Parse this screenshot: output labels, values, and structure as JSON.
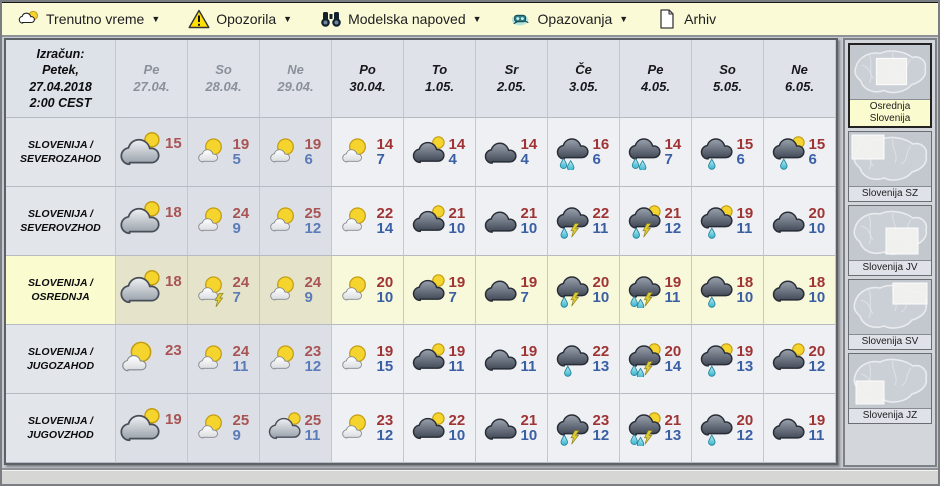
{
  "menu": {
    "items": [
      {
        "icon": "current-weather-icon",
        "label": "Trenutno vreme",
        "arrow": "▼"
      },
      {
        "icon": "warning-icon",
        "label": "Opozorila",
        "arrow": "▼"
      },
      {
        "icon": "binoculars-icon",
        "label": "Modelska napoved",
        "arrow": "▼"
      },
      {
        "icon": "satellite-icon",
        "label": "Opazovanja",
        "arrow": "▼"
      },
      {
        "icon": "document-icon",
        "label": "Arhiv",
        "arrow": null
      }
    ]
  },
  "table": {
    "calc": {
      "lines": [
        "Izračun:",
        "Petek,",
        "27.04.2018",
        "2:00 CEST"
      ]
    },
    "days": [
      {
        "label": "Pe",
        "date": "27.04.",
        "past": true
      },
      {
        "label": "So",
        "date": "28.04.",
        "past": true
      },
      {
        "label": "Ne",
        "date": "29.04.",
        "past": true
      },
      {
        "label": "Po",
        "date": "30.04.",
        "past": false
      },
      {
        "label": "To",
        "date": "1.05.",
        "past": false
      },
      {
        "label": "Sr",
        "date": "2.05.",
        "past": false
      },
      {
        "label": "Če",
        "date": "3.05.",
        "past": false
      },
      {
        "label": "Pe",
        "date": "4.05.",
        "past": false
      },
      {
        "label": "So",
        "date": "5.05.",
        "past": false
      },
      {
        "label": "Ne",
        "date": "6.05.",
        "past": false
      }
    ],
    "rows": [
      {
        "region_prefix": "SLOVENIJA /",
        "region_name": "SEVEROZAHOD",
        "selected": false,
        "cells": [
          {
            "icon": "cloud-sun",
            "hi": 15,
            "lo": null
          },
          {
            "icon": "sun-cloud",
            "hi": 19,
            "lo": 5
          },
          {
            "icon": "sun-cloud",
            "hi": 19,
            "lo": 6
          },
          {
            "icon": "sun-cloud",
            "hi": 14,
            "lo": 7
          },
          {
            "icon": "cloud-dark-sun",
            "hi": 14,
            "lo": 4
          },
          {
            "icon": "cloud-dark",
            "hi": 14,
            "lo": 4
          },
          {
            "icon": "rain-2",
            "hi": 16,
            "lo": 6
          },
          {
            "icon": "rain-2",
            "hi": 14,
            "lo": 7
          },
          {
            "icon": "rain-1",
            "hi": 15,
            "lo": 6
          },
          {
            "icon": "rain-1-sun",
            "hi": 15,
            "lo": 6
          }
        ]
      },
      {
        "region_prefix": "SLOVENIJA /",
        "region_name": "SEVEROVZHOD",
        "selected": false,
        "cells": [
          {
            "icon": "cloud-sun",
            "hi": 18,
            "lo": null
          },
          {
            "icon": "sun-cloud",
            "hi": 24,
            "lo": 9
          },
          {
            "icon": "sun-cloud",
            "hi": 25,
            "lo": 12
          },
          {
            "icon": "sun-cloud",
            "hi": 22,
            "lo": 14
          },
          {
            "icon": "cloud-dark-sun",
            "hi": 21,
            "lo": 10
          },
          {
            "icon": "cloud-dark",
            "hi": 21,
            "lo": 10
          },
          {
            "icon": "rain-1-thunder",
            "hi": 22,
            "lo": 11
          },
          {
            "icon": "rain-1-thunder-sun",
            "hi": 21,
            "lo": 12
          },
          {
            "icon": "rain-1-sun",
            "hi": 19,
            "lo": 11
          },
          {
            "icon": "cloud-dark",
            "hi": 20,
            "lo": 10
          }
        ]
      },
      {
        "region_prefix": "SLOVENIJA /",
        "region_name": "OSREDNJA",
        "selected": true,
        "cells": [
          {
            "icon": "cloud-sun",
            "hi": 18,
            "lo": null
          },
          {
            "icon": "sun-cloud-thunder",
            "hi": 24,
            "lo": 7
          },
          {
            "icon": "sun-cloud",
            "hi": 24,
            "lo": 9
          },
          {
            "icon": "sun-cloud",
            "hi": 20,
            "lo": 10
          },
          {
            "icon": "cloud-dark-sun",
            "hi": 19,
            "lo": 7
          },
          {
            "icon": "cloud-dark",
            "hi": 19,
            "lo": 7
          },
          {
            "icon": "rain-1-thunder",
            "hi": 20,
            "lo": 10
          },
          {
            "icon": "rain-2-thunder",
            "hi": 19,
            "lo": 11
          },
          {
            "icon": "rain-1",
            "hi": 18,
            "lo": 10
          },
          {
            "icon": "cloud-dark",
            "hi": 18,
            "lo": 10
          }
        ]
      },
      {
        "region_prefix": "SLOVENIJA /",
        "region_name": "JUGOZAHOD",
        "selected": false,
        "cells": [
          {
            "icon": "sun-cloud",
            "hi": 23,
            "lo": null
          },
          {
            "icon": "sun-cloud",
            "hi": 24,
            "lo": 11
          },
          {
            "icon": "sun-cloud",
            "hi": 23,
            "lo": 12
          },
          {
            "icon": "sun-cloud",
            "hi": 19,
            "lo": 15
          },
          {
            "icon": "cloud-dark-sun",
            "hi": 19,
            "lo": 11
          },
          {
            "icon": "cloud-dark",
            "hi": 19,
            "lo": 11
          },
          {
            "icon": "rain-1",
            "hi": 22,
            "lo": 13
          },
          {
            "icon": "rain-2-thunder-sun",
            "hi": 20,
            "lo": 14
          },
          {
            "icon": "rain-1-sun",
            "hi": 19,
            "lo": 13
          },
          {
            "icon": "cloud-dark-sun",
            "hi": 20,
            "lo": 12
          }
        ]
      },
      {
        "region_prefix": "SLOVENIJA /",
        "region_name": "JUGOVZHOD",
        "selected": false,
        "cells": [
          {
            "icon": "cloud-sun",
            "hi": 19,
            "lo": null
          },
          {
            "icon": "sun-cloud",
            "hi": 25,
            "lo": 9
          },
          {
            "icon": "cloud-sun",
            "hi": 25,
            "lo": 11
          },
          {
            "icon": "sun-cloud",
            "hi": 23,
            "lo": 12
          },
          {
            "icon": "cloud-dark-sun",
            "hi": 22,
            "lo": 10
          },
          {
            "icon": "cloud-dark",
            "hi": 21,
            "lo": 10
          },
          {
            "icon": "rain-1-thunder",
            "hi": 23,
            "lo": 12
          },
          {
            "icon": "rain-2-thunder-sun",
            "hi": 21,
            "lo": 13
          },
          {
            "icon": "rain-1",
            "hi": 20,
            "lo": 12
          },
          {
            "icon": "cloud-dark",
            "hi": 19,
            "lo": 11
          }
        ]
      }
    ]
  },
  "sidebar": {
    "items": [
      {
        "lines": [
          "Osrednja",
          "Slovenija"
        ],
        "region": "c",
        "selected": true
      },
      {
        "lines": [
          "Slovenija SZ"
        ],
        "region": "nw",
        "selected": false
      },
      {
        "lines": [
          "Slovenija JV"
        ],
        "region": "se",
        "selected": false
      },
      {
        "lines": [
          "Slovenija SV"
        ],
        "region": "ne",
        "selected": false
      },
      {
        "lines": [
          "Slovenija JZ"
        ],
        "region": "sw",
        "selected": false
      }
    ]
  },
  "colors": {
    "menu_bg": "#fafbd6",
    "header_bg": "#dfe3e9",
    "past_col_bg": "#dcdfe5",
    "future_col_bg": "#eef0f4",
    "selected_row_bg": "#f8f8da",
    "selected_label_bg": "#fbfbd0",
    "high_temp": "#a03434",
    "low_temp": "#3b5fa5"
  }
}
